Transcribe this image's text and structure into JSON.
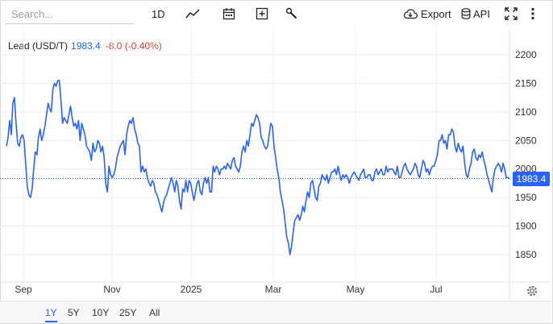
{
  "toolbar": {
    "search_placeholder": "Search...",
    "interval_label": "1D",
    "export_label": "Export",
    "api_label": "API",
    "icons": [
      "line-chart-icon",
      "calendar-icon",
      "add-box-icon",
      "wrench-icon",
      "cloud-download-icon",
      "database-icon",
      "fullscreen-icon",
      "more-vertical-icon",
      "gear-icon"
    ]
  },
  "legend": {
    "name": "Lead (USD/T)",
    "price": "1983.4",
    "change": "-8.0 (-0.40%)"
  },
  "ranges": {
    "items": [
      "1Y",
      "5Y",
      "10Y",
      "25Y",
      "All"
    ],
    "active": "1Y"
  },
  "colors": {
    "line": "#2962ff",
    "change_negative": "#e53935",
    "badge": "#2962ff"
  },
  "chart_data": {
    "type": "line",
    "series": [
      {
        "name": "Lead (USD/T)",
        "values": [
          2040,
          2055,
          2085,
          2060,
          2115,
          2125,
          2080,
          2045,
          2040,
          2055,
          2060,
          2050,
          2010,
          1970,
          1955,
          1950,
          1965,
          2000,
          2030,
          2025,
          2055,
          2070,
          2050,
          2060,
          2075,
          2095,
          2115,
          2105,
          2100,
          2140,
          2150,
          2145,
          2155,
          2155,
          2120,
          2080,
          2090,
          2085,
          2080,
          2095,
          2110,
          2090,
          2075,
          2080,
          2070,
          2085,
          2050,
          2080,
          2070,
          2060,
          2040,
          2035,
          2030,
          2015,
          2045,
          2030,
          2035,
          2050,
          2045,
          2030,
          2040,
          2020,
          1975,
          1960,
          2005,
          1990,
          1985,
          1990,
          2000,
          2020,
          2030,
          2040,
          2045,
          2050,
          2025,
          2060,
          2075,
          2085,
          2080,
          2090,
          2070,
          2060,
          2045,
          2040,
          1995,
          2005,
          1995,
          2000,
          1985,
          1975,
          1970,
          1980,
          1975,
          1960,
          1955,
          1945,
          1935,
          1925,
          1940,
          1950,
          1955,
          1965,
          1975,
          1985,
          1975,
          1960,
          1980,
          1970,
          1945,
          1930,
          1965,
          1960,
          1980,
          1960,
          1980,
          1975,
          1960,
          1945,
          1960,
          1975,
          1980,
          1960,
          1955,
          1975,
          1985,
          1975,
          1985,
          1960,
          1960,
          2005,
          1995,
          2005,
          2000,
          1990,
          2000,
          2000,
          2005,
          2000,
          2010,
          2005,
          2000,
          2015,
          2020,
          2005,
          2000,
          1995,
          2005,
          2030,
          2040,
          2030,
          2050,
          2040,
          2060,
          2080,
          2075,
          2085,
          2095,
          2090,
          2080,
          2055,
          2050,
          2040,
          2035,
          2040,
          2060,
          2080,
          2075,
          2040,
          2020,
          2000,
          1985,
          1960,
          1945,
          1930,
          1905,
          1880,
          1870,
          1850,
          1865,
          1890,
          1910,
          1915,
          1920,
          1910,
          1920,
          1935,
          1925,
          1945,
          1960,
          1950,
          1975,
          1980,
          1965,
          1950,
          1945,
          1970,
          1975,
          1990,
          1985,
          1980,
          1990,
          1975,
          1985,
          1995,
          1995,
          2000,
          1990,
          2005,
          1990,
          1980,
          1990,
          1985,
          1990,
          1985,
          1975,
          1985,
          1990,
          1995,
          1990,
          1985,
          1980,
          1990,
          1995,
          2000,
          1985,
          1985,
          1990,
          1990,
          1980,
          1980,
          1995,
          2000,
          1990,
          1995,
          2000,
          1990,
          1990,
          2005,
          1995,
          2000,
          2000,
          2000,
          1995,
          1990,
          2005,
          1985,
          1985,
          1995,
          2005,
          2010,
          2000,
          1995,
          1990,
          1995,
          2000,
          2010,
          2005,
          1990,
          1985,
          2000,
          2015,
          2010,
          1995,
          2000,
          1990,
          2000,
          2005,
          2005,
          2015,
          2025,
          2050,
          2050,
          2060,
          2045,
          2050,
          2035,
          2060,
          2060,
          2070,
          2065,
          2040,
          2030,
          2045,
          2035,
          2030,
          2040,
          2010,
          1990,
          1985,
          2000,
          2010,
          2030,
          2035,
          2020,
          2015,
          2025,
          2020,
          2030,
          2015,
          2005,
          1990,
          1980,
          1970,
          1960,
          1985,
          2000,
          2005,
          2010,
          2005,
          1995,
          2010,
          2000,
          1985,
          1985,
          1983.4
        ]
      }
    ],
    "x_ticks": [
      "Sep",
      "Nov",
      "2025",
      "Mar",
      "May",
      "Jul"
    ],
    "ylim": [
      1800,
      2225
    ],
    "y_ticks": [
      1850,
      1900,
      1950,
      2000,
      2050,
      2100,
      2150,
      2200
    ],
    "last_value_label": "1983.4",
    "grid": true
  }
}
